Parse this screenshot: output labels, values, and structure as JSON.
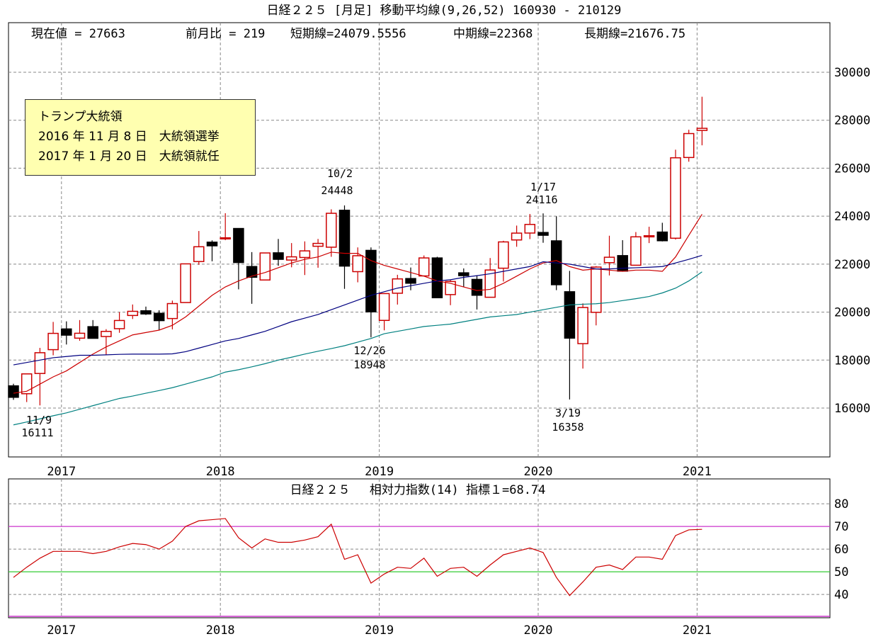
{
  "title": "日経２２５ [月足]  移動平均線(9,26,52)  160930 - 210129",
  "info": {
    "current": "現在値 = 27663",
    "change": "前月比 = 219",
    "short_ma": "短期線=24079.5556",
    "mid_ma": "中期線=22368",
    "long_ma": "長期線=21676.75"
  },
  "note": {
    "line1": "トランプ大統領",
    "line2": "2016 年 11 月 8 日　大統領選挙",
    "line3": "2017 年 1 月 20 日　大統領就任"
  },
  "annotations": [
    {
      "date": "10/2",
      "value": "24448"
    },
    {
      "date": "1/17",
      "value": "24116"
    },
    {
      "date": "12/26",
      "value": "18948"
    },
    {
      "date": "3/19",
      "value": "16358"
    },
    {
      "date": "11/9",
      "value": "16111"
    }
  ],
  "rsi_title": "日経２２５　 相対力指数(14) 指標１=68.74",
  "colors": {
    "up": "#cc0000",
    "down": "#000000",
    "ma_short": "#cc0000",
    "ma_mid": "#000080",
    "ma_long": "#008080",
    "rsi": "#cc0000",
    "rsi_70": "#cc33cc",
    "rsi_50": "#33cc33"
  },
  "chart_data": [
    {
      "type": "candlestick",
      "title": "日経２２５ [月足] 移動平均線(9,26,52)",
      "ylim": [
        13963,
        32067
      ],
      "yticks": [
        16000,
        18000,
        20000,
        22000,
        24000,
        26000,
        28000,
        30000
      ],
      "xticks": [
        "2017",
        "2018",
        "2019",
        "2020",
        "2021"
      ],
      "xtick_month_index": [
        4,
        16,
        28,
        40,
        52
      ],
      "months": [
        "2016-09",
        "2016-10",
        "2016-11",
        "2016-12",
        "2017-01",
        "2017-02",
        "2017-03",
        "2017-04",
        "2017-05",
        "2017-06",
        "2017-07",
        "2017-08",
        "2017-09",
        "2017-10",
        "2017-11",
        "2017-12",
        "2018-01",
        "2018-02",
        "2018-03",
        "2018-04",
        "2018-05",
        "2018-06",
        "2018-07",
        "2018-08",
        "2018-09",
        "2018-10",
        "2018-11",
        "2018-12",
        "2019-01",
        "2019-02",
        "2019-03",
        "2019-04",
        "2019-05",
        "2019-06",
        "2019-07",
        "2019-08",
        "2019-09",
        "2019-10",
        "2019-11",
        "2019-12",
        "2020-01",
        "2020-02",
        "2020-03",
        "2020-04",
        "2020-05",
        "2020-06",
        "2020-07",
        "2020-08",
        "2020-09",
        "2020-10",
        "2020-11",
        "2020-12",
        "2021-01"
      ],
      "ohlc": [
        [
          16926,
          17014,
          16344,
          16450
        ],
        [
          16598,
          17425,
          16251,
          17425
        ],
        [
          17442,
          18509,
          16111,
          18308
        ],
        [
          18435,
          19592,
          18201,
          19114
        ],
        [
          19298,
          19615,
          18650,
          19041
        ],
        [
          18915,
          19668,
          18806,
          19119
        ],
        [
          19393,
          19668,
          18909,
          18909
        ],
        [
          18983,
          19289,
          18224,
          19197
        ],
        [
          19310,
          19998,
          19140,
          19651
        ],
        [
          19860,
          20318,
          19712,
          20033
        ],
        [
          20055,
          20230,
          19882,
          19925
        ],
        [
          19950,
          20080,
          19239,
          19646
        ],
        [
          19733,
          20481,
          19280,
          20356
        ],
        [
          20400,
          22012,
          20400,
          22012
        ],
        [
          22109,
          23382,
          21972,
          22725
        ],
        [
          22916,
          22994,
          22119,
          22765
        ],
        [
          23073,
          24124,
          22999,
          23098
        ],
        [
          23486,
          23486,
          20950,
          22068
        ],
        [
          21901,
          22502,
          20347,
          21454
        ],
        [
          21340,
          22467,
          21340,
          22467
        ],
        [
          22472,
          23050,
          21931,
          22202
        ],
        [
          22171,
          22879,
          21868,
          22305
        ],
        [
          22278,
          22949,
          21546,
          22553
        ],
        [
          22746,
          23051,
          21851,
          22865
        ],
        [
          22707,
          24286,
          22307,
          24120
        ],
        [
          24245,
          24448,
          20971,
          21920
        ],
        [
          21687,
          22698,
          21243,
          22351
        ],
        [
          22574,
          22698,
          18948,
          20014
        ],
        [
          19655,
          20773,
          19241,
          20773
        ],
        [
          20788,
          21556,
          20315,
          21385
        ],
        [
          21399,
          21860,
          20911,
          21206
        ],
        [
          21509,
          22362,
          21509,
          22259
        ],
        [
          22258,
          22307,
          20601,
          20601
        ],
        [
          20731,
          21343,
          20289,
          21276
        ],
        [
          21638,
          21823,
          21046,
          21522
        ],
        [
          21363,
          21540,
          20110,
          20704
        ],
        [
          20620,
          22255,
          20620,
          21756
        ],
        [
          21831,
          22974,
          21276,
          22927
        ],
        [
          23009,
          23608,
          22726,
          23294
        ],
        [
          23297,
          24091,
          23044,
          23656
        ],
        [
          23319,
          24116,
          22892,
          23205
        ],
        [
          22971,
          23995,
          20916,
          21143
        ],
        [
          20849,
          21719,
          16358,
          18917
        ],
        [
          18686,
          20365,
          17646,
          20193
        ],
        [
          19991,
          21916,
          19448,
          21878
        ],
        [
          22062,
          23185,
          21529,
          22288
        ],
        [
          22355,
          22999,
          21710,
          21710
        ],
        [
          21955,
          23338,
          21955,
          23139
        ],
        [
          23138,
          23559,
          22878,
          23185
        ],
        [
          23337,
          23725,
          22948,
          22977
        ],
        [
          23081,
          26772,
          23026,
          26434
        ],
        [
          26446,
          27602,
          26271,
          27444
        ],
        [
          27575,
          28979,
          26954,
          27663
        ]
      ],
      "series": [
        {
          "name": "短期線(9)",
          "values": [
            16620,
            16700,
            17000,
            17300,
            17550,
            17900,
            18250,
            18550,
            18800,
            19050,
            19150,
            19250,
            19450,
            19800,
            20250,
            20700,
            21050,
            21300,
            21500,
            21650,
            21850,
            22050,
            22200,
            22300,
            22500,
            22450,
            22450,
            22150,
            21950,
            21800,
            21650,
            21500,
            21300,
            21200,
            21050,
            20900,
            20950,
            21200,
            21500,
            21800,
            22050,
            22150,
            21900,
            21750,
            21800,
            21750,
            21700,
            21750,
            21750,
            21700,
            22300,
            23200,
            24080
          ]
        },
        {
          "name": "中期線(26)",
          "values": [
            17800,
            17900,
            18000,
            18100,
            18150,
            18200,
            18200,
            18220,
            18240,
            18250,
            18250,
            18250,
            18260,
            18350,
            18500,
            18650,
            18800,
            18900,
            19050,
            19200,
            19400,
            19600,
            19750,
            19900,
            20100,
            20300,
            20500,
            20700,
            20850,
            21000,
            21100,
            21200,
            21300,
            21350,
            21450,
            21520,
            21600,
            21700,
            21800,
            21900,
            22100,
            22050,
            22000,
            21900,
            21800,
            21800,
            21830,
            21850,
            21870,
            21900,
            22050,
            22200,
            22368
          ]
        },
        {
          "name": "長期線(52)",
          "values": [
            15300,
            15420,
            15550,
            15680,
            15800,
            15950,
            16100,
            16250,
            16400,
            16500,
            16620,
            16730,
            16850,
            17000,
            17150,
            17300,
            17500,
            17600,
            17720,
            17850,
            18000,
            18120,
            18250,
            18370,
            18480,
            18600,
            18750,
            18900,
            19100,
            19200,
            19300,
            19400,
            19450,
            19500,
            19600,
            19700,
            19800,
            19850,
            19900,
            20000,
            20100,
            20200,
            20300,
            20330,
            20350,
            20400,
            20480,
            20560,
            20650,
            20800,
            21000,
            21300,
            21677
          ]
        }
      ]
    },
    {
      "type": "line",
      "title": "相対力指数(14)",
      "ylim": [
        29.7,
        91
      ],
      "yticks": [
        40,
        50,
        60,
        70,
        80
      ],
      "reference_lines": [
        70,
        50,
        30
      ],
      "values": [
        47.5,
        52,
        56,
        59,
        59,
        59,
        58,
        59,
        61,
        62.5,
        62,
        60,
        63.5,
        70,
        72.5,
        73,
        73.5,
        65,
        60.5,
        64.5,
        63,
        63,
        64,
        65.5,
        71,
        55.5,
        57.5,
        45,
        49,
        52,
        51.5,
        56,
        48,
        51.5,
        52,
        48,
        53,
        57.5,
        59,
        60.5,
        58.5,
        47.5,
        39.5,
        45.5,
        52,
        53,
        51,
        56.5,
        56.5,
        55.5,
        66,
        68.5,
        68.74
      ]
    }
  ]
}
